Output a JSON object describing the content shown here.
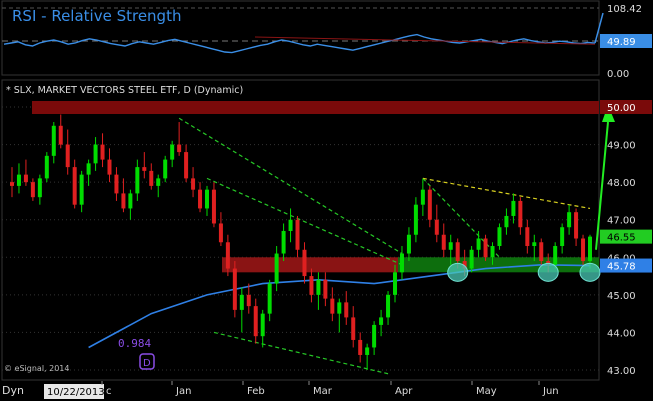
{
  "rsi_panel": {
    "title": "RSI - Relative Strength",
    "ticks": [
      "108.42",
      "49.89",
      "0.00"
    ],
    "current": "49.89",
    "max": "108.42"
  },
  "chart_data": {
    "type": "candlestick",
    "title": "* SLX, MARKET VECTORS STEEL ETF, D (Dynamic)",
    "y_ticks": [
      "50.00",
      "49.00",
      "48.00",
      "47.00",
      "46.55",
      "46.00",
      "45.78",
      "45.00",
      "44.00",
      "43.00"
    ],
    "ylim": [
      42.9,
      50.3
    ],
    "x_labels": [
      "c",
      "Jan",
      "Feb",
      "Mar",
      "Apr",
      "May",
      "Jun"
    ],
    "resistance_price": 50.0,
    "support_zone": [
      45.6,
      46.0
    ],
    "last_price": 46.55,
    "moving_average_price": 45.78,
    "annotation_value": "0.984",
    "annotation_marker": "D",
    "copyright": "© eSignal, 2014",
    "candles": [
      [
        48.0,
        48.4,
        47.6,
        47.9
      ],
      [
        47.9,
        48.5,
        47.7,
        48.2
      ],
      [
        48.2,
        48.6,
        47.9,
        48.0
      ],
      [
        48.0,
        48.1,
        47.5,
        47.6
      ],
      [
        47.6,
        48.2,
        47.4,
        48.1
      ],
      [
        48.1,
        48.8,
        48.0,
        48.7
      ],
      [
        48.7,
        49.6,
        48.5,
        49.5
      ],
      [
        49.5,
        49.8,
        48.9,
        49.0
      ],
      [
        49.0,
        49.4,
        48.2,
        48.4
      ],
      [
        48.4,
        48.6,
        47.3,
        47.4
      ],
      [
        47.4,
        48.3,
        47.2,
        48.2
      ],
      [
        48.2,
        48.6,
        47.9,
        48.5
      ],
      [
        48.5,
        49.2,
        48.3,
        49.0
      ],
      [
        49.0,
        49.3,
        48.4,
        48.6
      ],
      [
        48.6,
        48.9,
        48.0,
        48.2
      ],
      [
        48.2,
        48.4,
        47.5,
        47.7
      ],
      [
        47.7,
        48.1,
        47.2,
        47.3
      ],
      [
        47.3,
        47.8,
        47.0,
        47.7
      ],
      [
        47.7,
        48.6,
        47.5,
        48.4
      ],
      [
        48.4,
        48.8,
        48.1,
        48.3
      ],
      [
        48.3,
        48.5,
        47.8,
        47.9
      ],
      [
        47.9,
        48.2,
        47.6,
        48.1
      ],
      [
        48.1,
        48.7,
        48.0,
        48.6
      ],
      [
        48.6,
        49.1,
        48.4,
        49.0
      ],
      [
        49.0,
        49.6,
        48.7,
        48.8
      ],
      [
        48.8,
        49.0,
        48.0,
        48.1
      ],
      [
        48.1,
        48.4,
        47.6,
        47.8
      ],
      [
        47.8,
        48.0,
        47.2,
        47.3
      ],
      [
        47.3,
        47.9,
        47.1,
        47.8
      ],
      [
        47.8,
        48.0,
        46.8,
        46.9
      ],
      [
        46.9,
        47.2,
        46.3,
        46.4
      ],
      [
        46.4,
        46.6,
        45.5,
        45.7
      ],
      [
        45.7,
        45.9,
        44.4,
        44.6
      ],
      [
        44.6,
        45.2,
        44.0,
        45.0
      ],
      [
        45.0,
        45.3,
        44.5,
        44.7
      ],
      [
        44.7,
        44.9,
        43.7,
        43.9
      ],
      [
        43.9,
        44.6,
        43.6,
        44.5
      ],
      [
        44.5,
        45.4,
        44.3,
        45.3
      ],
      [
        45.3,
        46.3,
        45.1,
        46.1
      ],
      [
        46.1,
        46.9,
        45.9,
        46.7
      ],
      [
        46.7,
        47.3,
        46.4,
        47.0
      ],
      [
        47.0,
        47.1,
        46.0,
        46.2
      ],
      [
        46.2,
        46.4,
        45.3,
        45.5
      ],
      [
        45.5,
        45.7,
        44.8,
        45.0
      ],
      [
        45.0,
        45.6,
        44.6,
        45.4
      ],
      [
        45.4,
        45.6,
        44.7,
        44.9
      ],
      [
        44.9,
        45.2,
        44.3,
        44.5
      ],
      [
        44.5,
        44.9,
        44.0,
        44.8
      ],
      [
        44.8,
        45.1,
        44.2,
        44.4
      ],
      [
        44.4,
        44.7,
        43.6,
        43.8
      ],
      [
        43.8,
        44.0,
        43.2,
        43.4
      ],
      [
        43.4,
        43.7,
        43.0,
        43.6
      ],
      [
        43.6,
        44.3,
        43.4,
        44.2
      ],
      [
        44.2,
        44.6,
        43.9,
        44.4
      ],
      [
        44.4,
        45.1,
        44.2,
        45.0
      ],
      [
        45.0,
        45.8,
        44.8,
        45.6
      ],
      [
        45.6,
        46.3,
        45.4,
        46.1
      ],
      [
        46.1,
        46.8,
        45.9,
        46.6
      ],
      [
        46.6,
        47.6,
        46.4,
        47.4
      ],
      [
        47.4,
        48.1,
        47.1,
        47.8
      ],
      [
        47.8,
        47.9,
        46.8,
        47.0
      ],
      [
        47.0,
        47.4,
        46.4,
        46.6
      ],
      [
        46.6,
        46.9,
        46.0,
        46.2
      ],
      [
        46.2,
        46.6,
        45.8,
        46.4
      ],
      [
        46.4,
        46.5,
        45.7,
        45.9
      ],
      [
        45.9,
        46.2,
        45.5,
        45.7
      ],
      [
        45.7,
        46.3,
        45.6,
        46.2
      ],
      [
        46.2,
        46.7,
        46.0,
        46.5
      ],
      [
        46.5,
        46.6,
        45.9,
        46.0
      ],
      [
        46.0,
        46.4,
        45.8,
        46.3
      ],
      [
        46.3,
        46.9,
        46.2,
        46.8
      ],
      [
        46.8,
        47.3,
        46.6,
        47.1
      ],
      [
        47.1,
        47.7,
        46.9,
        47.5
      ],
      [
        47.5,
        47.6,
        46.6,
        46.8
      ],
      [
        46.8,
        47.0,
        46.1,
        46.3
      ],
      [
        46.3,
        46.6,
        45.9,
        46.4
      ],
      [
        46.4,
        46.5,
        45.8,
        45.9
      ],
      [
        45.9,
        46.1,
        45.6,
        45.8
      ],
      [
        45.8,
        46.4,
        45.7,
        46.3
      ],
      [
        46.3,
        46.9,
        46.1,
        46.8
      ],
      [
        46.8,
        47.4,
        46.6,
        47.2
      ],
      [
        47.2,
        47.3,
        46.3,
        46.5
      ],
      [
        46.5,
        46.6,
        45.8,
        45.9
      ],
      [
        45.9,
        46.6,
        45.7,
        46.55
      ]
    ],
    "rsi_values": [
      48,
      50,
      52,
      47,
      45,
      50,
      53,
      55,
      52,
      48,
      50,
      54,
      57,
      55,
      52,
      49,
      47,
      45,
      49,
      52,
      50,
      48,
      51,
      54,
      56,
      53,
      50,
      47,
      44,
      41,
      38,
      35,
      34,
      37,
      40,
      43,
      46,
      48,
      52,
      55,
      53,
      50,
      47,
      45,
      48,
      46,
      44,
      42,
      40,
      38,
      41,
      44,
      47,
      50,
      53,
      56,
      59,
      62,
      64,
      60,
      57,
      55,
      53,
      51,
      50,
      52,
      54,
      56,
      53,
      51,
      49,
      52,
      55,
      57,
      54,
      52,
      50,
      51,
      53,
      52,
      50,
      49,
      51,
      49.89
    ]
  },
  "footer": {
    "left_label": "Dyn",
    "date": "10/22/2013"
  },
  "colors": {
    "up": "#00dc00",
    "down": "#e02020",
    "rsi_line": "#3a8ee6",
    "ma_line": "#2f80e6",
    "resistance_band": "#7a0a0a",
    "support_band_red": "#8a1414",
    "support_band_green": "#0d6e0d",
    "trend_green": "#26c826",
    "trend_yellow": "#d8d020",
    "arrow_green": "#22ee22",
    "ellipse": "#48c8b4"
  }
}
